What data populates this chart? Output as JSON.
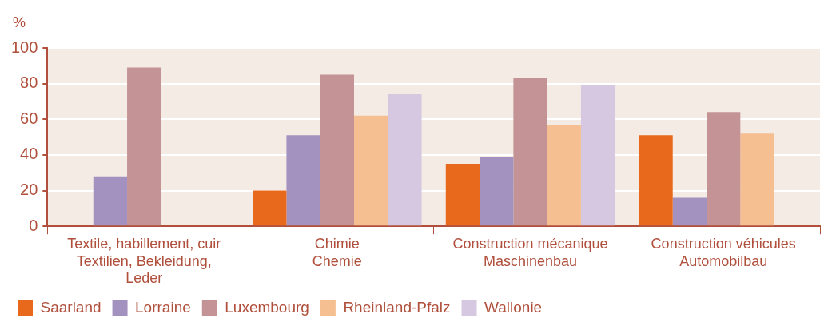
{
  "chart_data": {
    "type": "bar",
    "ylabel": "%",
    "categories": [
      "Textile, habillement, cuir\nTextilien, Bekleidung,\nLeder",
      "Chimie\nChemie",
      "Construction mécanique\nMaschinenbau",
      "Construction véhicules\nAutomobilbau"
    ],
    "series": [
      {
        "name": "Saarland",
        "color": "#e8691b",
        "values": [
          null,
          20,
          35,
          51
        ]
      },
      {
        "name": "Lorraine",
        "color": "#a392c0",
        "values": [
          28,
          51,
          39,
          16
        ]
      },
      {
        "name": "Luxembourg",
        "color": "#c49395",
        "values": [
          89,
          85,
          83,
          64
        ]
      },
      {
        "name": "Rheinland-Pfalz",
        "color": "#f5bf92",
        "values": [
          null,
          62,
          57,
          52
        ]
      },
      {
        "name": "Wallonie",
        "color": "#d5c8e0",
        "values": [
          null,
          74,
          79,
          null
        ]
      }
    ],
    "ylim": [
      0,
      100
    ],
    "yticks": [
      0,
      20,
      40,
      60,
      80,
      100
    ],
    "grid": "y",
    "legend": "bottom left"
  }
}
